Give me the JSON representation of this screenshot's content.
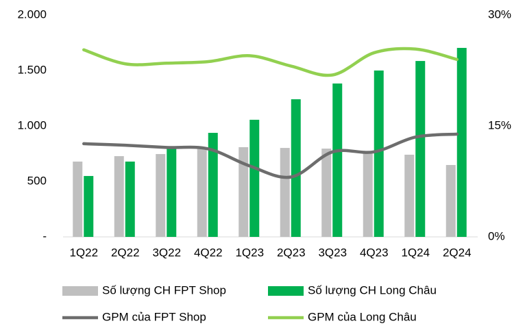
{
  "chart_data": {
    "type": "bar_line_combo",
    "categories": [
      "1Q22",
      "2Q22",
      "3Q22",
      "4Q22",
      "1Q23",
      "2Q23",
      "3Q23",
      "4Q23",
      "1Q24",
      "2Q24"
    ],
    "series": [
      {
        "name": "Số lượng CH FPT Shop",
        "type": "bar",
        "color": "#bfbfbf",
        "values": [
          679,
          728,
          747,
          796,
          809,
          802,
          796,
          765,
          741,
          648
        ]
      },
      {
        "name": "Số lượng CH Long Châu",
        "type": "bar",
        "color": "#00b050",
        "values": [
          549,
          679,
          809,
          938,
          1056,
          1241,
          1383,
          1500,
          1586,
          1704
        ]
      },
      {
        "name": "GPM của FPT Shop",
        "type": "line",
        "axis": "y2",
        "color": "#6d6d6d",
        "values": [
          12.6,
          12.4,
          12.1,
          11.9,
          9.6,
          8.1,
          11.5,
          11.5,
          13.5,
          13.9
        ]
      },
      {
        "name": "GPM của Long Châu",
        "type": "line",
        "axis": "y2",
        "color": "#92d050",
        "values": [
          25.3,
          23.4,
          23.5,
          23.7,
          24.5,
          23.1,
          21.9,
          24.9,
          25.4,
          24.0
        ]
      }
    ],
    "ylim": [
      0,
      2000
    ],
    "yticks": [
      {
        "value": 0,
        "label": "-"
      },
      500,
      {
        "value": 1000,
        "label": "1.000"
      },
      {
        "value": 1500,
        "label": "1.500"
      },
      {
        "value": 2000,
        "label": "2.000"
      }
    ],
    "y2lim": [
      0,
      30
    ],
    "y2ticks": [
      {
        "value": 0,
        "label": "0%"
      },
      {
        "value": 15,
        "label": "15%"
      },
      {
        "value": 30,
        "label": "30%"
      }
    ],
    "grid": false,
    "legend": "bottom"
  }
}
